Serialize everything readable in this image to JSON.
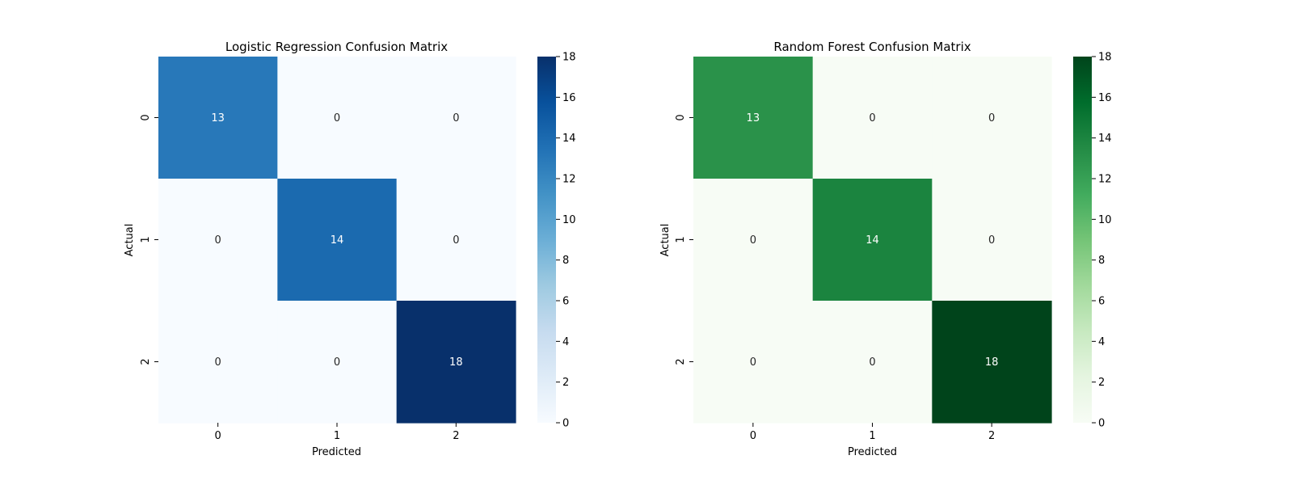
{
  "chart_data": [
    {
      "type": "heatmap",
      "title": "Logistic Regression Confusion Matrix",
      "xlabel": "Predicted",
      "ylabel": "Actual",
      "x_categories": [
        "0",
        "1",
        "2"
      ],
      "y_categories": [
        "0",
        "1",
        "2"
      ],
      "values": [
        [
          13,
          0,
          0
        ],
        [
          0,
          14,
          0
        ],
        [
          0,
          0,
          18
        ]
      ],
      "colormap": "Blues",
      "colormap_stops": [
        "#f7fbff",
        "#deebf7",
        "#c6dbef",
        "#9ecae1",
        "#6baed6",
        "#4292c6",
        "#2171b5",
        "#08519c",
        "#08306b"
      ],
      "colorbar_range": [
        0,
        18
      ],
      "colorbar_ticks": [
        "0",
        "2",
        "4",
        "6",
        "8",
        "10",
        "12",
        "14",
        "16",
        "18"
      ],
      "annotation_light_color": "#ffffff",
      "annotation_dark_color": "#262626"
    },
    {
      "type": "heatmap",
      "title": "Random Forest Confusion Matrix",
      "xlabel": "Predicted",
      "ylabel": "Actual",
      "x_categories": [
        "0",
        "1",
        "2"
      ],
      "y_categories": [
        "0",
        "1",
        "2"
      ],
      "values": [
        [
          13,
          0,
          0
        ],
        [
          0,
          14,
          0
        ],
        [
          0,
          0,
          18
        ]
      ],
      "colormap": "Greens",
      "colormap_stops": [
        "#f7fcf5",
        "#e5f5e0",
        "#c7e9c0",
        "#a1d99b",
        "#74c476",
        "#41ab5d",
        "#238b45",
        "#006d2c",
        "#00441b"
      ],
      "colorbar_range": [
        0,
        18
      ],
      "colorbar_ticks": [
        "0",
        "2",
        "4",
        "6",
        "8",
        "10",
        "12",
        "14",
        "16",
        "18"
      ],
      "annotation_light_color": "#ffffff",
      "annotation_dark_color": "#262626"
    }
  ]
}
